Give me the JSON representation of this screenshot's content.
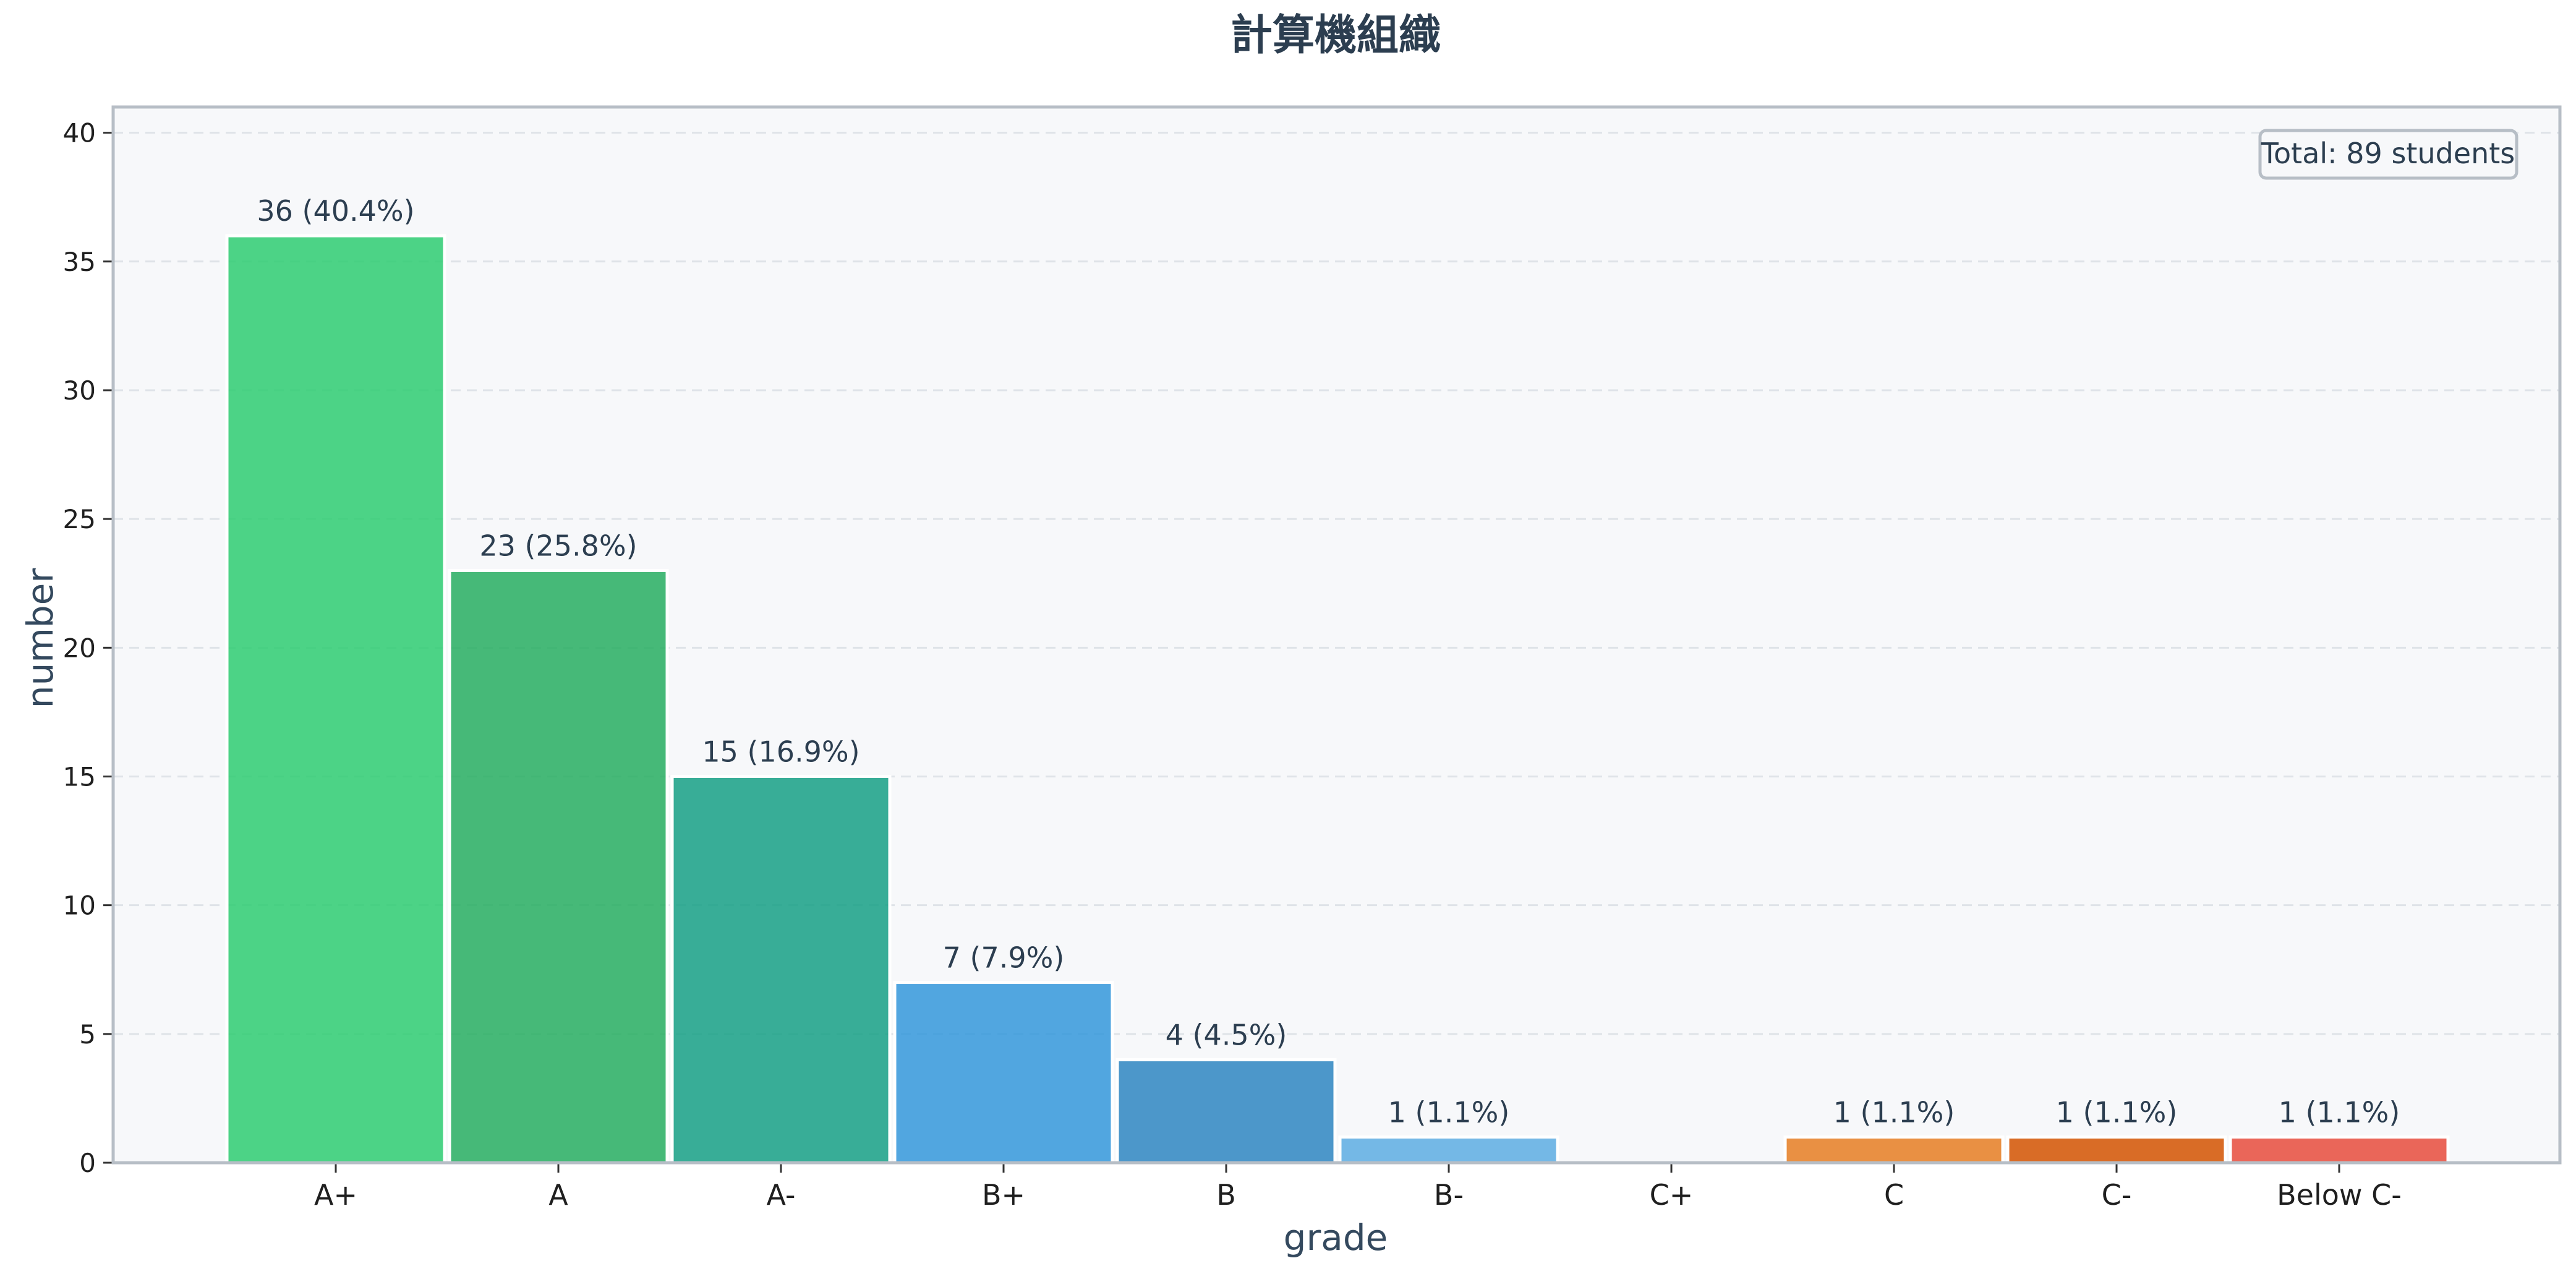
{
  "chart_data": {
    "type": "bar",
    "title": "計算機組織",
    "xlabel": "grade",
    "ylabel": "number",
    "ylim": [
      0,
      41
    ],
    "yticks": [
      0,
      5,
      10,
      15,
      20,
      25,
      30,
      35,
      40
    ],
    "grid": true,
    "categories": [
      "A+",
      "A",
      "A-",
      "B+",
      "B",
      "B-",
      "C+",
      "C",
      "C-",
      "Below C-"
    ],
    "values": [
      36,
      23,
      15,
      7,
      4,
      1,
      0,
      1,
      1,
      1
    ],
    "data_labels": [
      "36 (40.4%)",
      "23 (25.8%)",
      "15 (16.9%)",
      "7 (7.9%)",
      "4 (4.5%)",
      "1 (1.1%)",
      "",
      "1 (1.1%)",
      "1 (1.1%)",
      "1 (1.1%)"
    ],
    "colors": [
      "#2ecc71",
      "#27ae60",
      "#16a085",
      "#3498db",
      "#2e86c1",
      "#5dade2",
      "#f39c12",
      "#e67e22",
      "#d35400",
      "#e74c3c"
    ],
    "annotation": "Total: 89 students",
    "annotation_position": "top-right"
  },
  "style": {
    "plot_background": "#f7f8fa",
    "plot_border": "#b7bec6",
    "grid_color": "#dfe3e8"
  }
}
